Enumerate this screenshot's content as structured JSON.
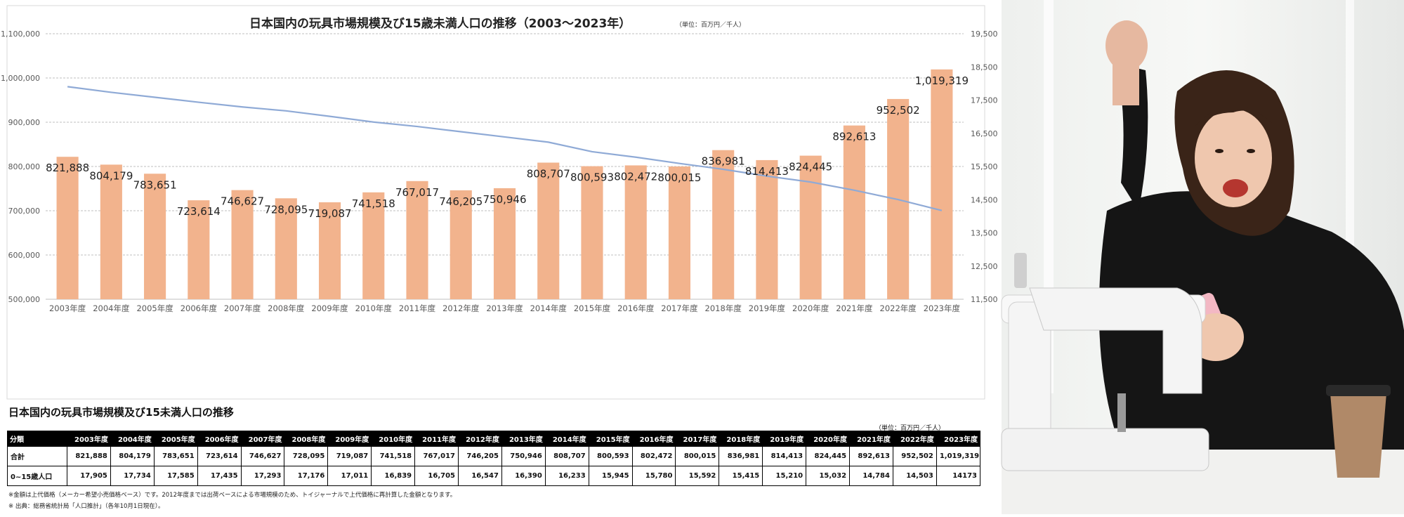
{
  "chart_data": {
    "type": "bar+line",
    "title": "日本国内の玩具市場規模及び15歳未満人口の推移（2003～2023年）",
    "unit_note": "（単位：百万円／千人）",
    "categories": [
      "2003年度",
      "2004年度",
      "2005年度",
      "2006年度",
      "2007年度",
      "2008年度",
      "2009年度",
      "2010年度",
      "2011年度",
      "2012年度",
      "2013年度",
      "2014年度",
      "2015年度",
      "2016年度",
      "2017年度",
      "2018年度",
      "2019年度",
      "2020年度",
      "2021年度",
      "2022年度",
      "2023年度"
    ],
    "bar_values": [
      821888,
      804179,
      783651,
      723614,
      746627,
      728095,
      719087,
      741518,
      767017,
      746205,
      750946,
      808707,
      800593,
      802472,
      800015,
      836981,
      814413,
      824445,
      892613,
      952502,
      1019319
    ],
    "bar_labels": [
      "821,888",
      "804,179",
      "783,651",
      "723,614",
      "746,627",
      "728,095",
      "719,087",
      "741,518",
      "767,017",
      "746,205",
      "750,946",
      "808,707",
      "800,593",
      "802,472",
      "800,015",
      "836,981",
      "814,413",
      "824,445",
      "892,613",
      "952,502",
      "1,019,319"
    ],
    "line_values": [
      17905,
      17734,
      17585,
      17435,
      17293,
      17176,
      17011,
      16839,
      16705,
      16547,
      16390,
      16233,
      15945,
      15780,
      15592,
      15415,
      15210,
      15032,
      14784,
      14503,
      14173
    ],
    "y_left": {
      "min": 500000,
      "max": 1100000,
      "ticks": [
        "500,000",
        "600,000",
        "700,000",
        "800,000",
        "900,000",
        "1,000,000",
        "1,100,000"
      ]
    },
    "y_right": {
      "min": 11500,
      "max": 19500,
      "ticks": [
        "11,500",
        "12,500",
        "13,500",
        "14,500",
        "15,500",
        "16,500",
        "17,500",
        "18,500",
        "19,500"
      ]
    },
    "colors": {
      "bar": "#f2b38d",
      "line": "#8faad6",
      "grid": "#bfbfbf"
    }
  },
  "table": {
    "title": "日本国内の玩具市場規模及び15未満人口の推移",
    "unit": "（単位：百万円／千人）",
    "header": [
      "分類",
      "2003年度",
      "2004年度",
      "2005年度",
      "2006年度",
      "2007年度",
      "2008年度",
      "2009年度",
      "2010年度",
      "2011年度",
      "2012年度",
      "2013年度",
      "2014年度",
      "2015年度",
      "2016年度",
      "2017年度",
      "2018年度",
      "2019年度",
      "2020年度",
      "2021年度",
      "2022年度",
      "2023年度"
    ],
    "rows": [
      [
        "合計",
        "821,888",
        "804,179",
        "783,651",
        "723,614",
        "746,627",
        "728,095",
        "719,087",
        "741,518",
        "767,017",
        "746,205",
        "750,946",
        "808,707",
        "800,593",
        "802,472",
        "800,015",
        "836,981",
        "814,413",
        "824,445",
        "892,613",
        "952,502",
        "1,019,319"
      ],
      [
        "0~15歳人口",
        "17,905",
        "17,734",
        "17,585",
        "17,435",
        "17,293",
        "17,176",
        "17,011",
        "16,839",
        "16,705",
        "16,547",
        "16,390",
        "16,233",
        "15,945",
        "15,780",
        "15,592",
        "15,415",
        "15,210",
        "15,032",
        "14,784",
        "14,503",
        "14173"
      ]
    ]
  },
  "notes": [
    "※金額は上代価格（メーカー希望小売価格ベース）です。2012年度までは出荷ベースによる市場規模のため、トイジャーナルで上代価格に再計算した金額となります。",
    "※ 出典：総務省統計局「人口推計」（各年10月1日現在）。"
  ]
}
